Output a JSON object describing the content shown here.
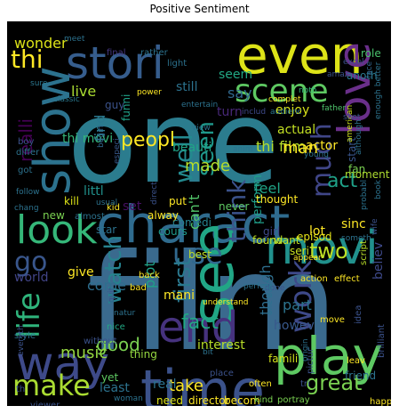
{
  "figure": {
    "title": "Positive Sentiment"
  },
  "wordcloud": {
    "background": "#000000",
    "palette": "viridis",
    "words": [
      {
        "text": "film",
        "color": "#3a6a8e"
      },
      {
        "text": "one",
        "color": "#2b7c8e"
      },
      {
        "text": "charact",
        "color": "#2f6b8e"
      },
      {
        "text": "time",
        "color": "#3b528b"
      },
      {
        "text": "play",
        "color": "#5ec962"
      },
      {
        "text": "movi",
        "color": "#21918c"
      },
      {
        "text": "see",
        "color": "#21a685"
      },
      {
        "text": "stori",
        "color": "#365d8d"
      },
      {
        "text": "even",
        "color": "#dde318"
      },
      {
        "text": "show",
        "color": "#2c728e"
      },
      {
        "text": "love",
        "color": "#6a2f8a"
      },
      {
        "text": "way",
        "color": "#3e4a89"
      },
      {
        "text": "end",
        "color": "#46327e"
      },
      {
        "text": "look",
        "color": "#35b779"
      },
      {
        "text": "make",
        "color": "#aadc32"
      },
      {
        "text": "scene",
        "color": "#5ec962"
      },
      {
        "text": "life",
        "color": "#2fb47c"
      },
      {
        "text": "work",
        "color": "#3e4989"
      },
      {
        "text": "think",
        "color": "#3b528b"
      },
      {
        "text": "much",
        "color": "#404688"
      },
      {
        "text": "go",
        "color": "#39568c"
      },
      {
        "text": "well",
        "color": "#23898e"
      },
      {
        "text": "use",
        "color": "#31688e"
      },
      {
        "text": "watch",
        "color": "#26828e"
      },
      {
        "text": "peopl",
        "color": "#fde725"
      },
      {
        "text": "thi",
        "color": "#fde725"
      },
      {
        "text": "first",
        "color": "#2a788e"
      },
      {
        "text": "seen",
        "color": "#1f988b"
      },
      {
        "text": "great",
        "color": "#7ad151"
      },
      {
        "text": "two",
        "color": "#bddf26"
      },
      {
        "text": "good",
        "color": "#7ad151"
      },
      {
        "text": "fact",
        "color": "#22a884"
      },
      {
        "text": "made",
        "color": "#b5de2b"
      },
      {
        "text": "realli",
        "color": "#440154"
      },
      {
        "text": "wonder",
        "color": "#dde318"
      },
      {
        "text": "music",
        "color": "#95d840"
      },
      {
        "text": "take",
        "color": "#fde725"
      },
      {
        "text": "act",
        "color": "#1fa188"
      },
      {
        "text": "thi film",
        "color": "#b5de2b"
      },
      {
        "text": "thi movi",
        "color": "#35b779"
      },
      {
        "text": "live",
        "color": "#aadc32"
      },
      {
        "text": "littl",
        "color": "#21918c"
      },
      {
        "text": "find",
        "color": "#2a788e"
      },
      {
        "text": "feel",
        "color": "#20a386"
      },
      {
        "text": "perform",
        "color": "#1f9e89"
      },
      {
        "text": "man",
        "color": "#fde725"
      },
      {
        "text": "actual",
        "color": "#c2df23"
      },
      {
        "text": "still",
        "color": "#2c728e"
      },
      {
        "text": "seem",
        "color": "#22a884"
      },
      {
        "text": "turn",
        "color": "#482878"
      },
      {
        "text": "say",
        "color": "#31688e"
      },
      {
        "text": "beauti",
        "color": "#20a486"
      },
      {
        "text": "plot",
        "color": "#1fa188"
      },
      {
        "text": "mani",
        "color": "#fde725"
      },
      {
        "text": "give",
        "color": "#fde725"
      },
      {
        "text": "come",
        "color": "#2e6e8e"
      },
      {
        "text": "though",
        "color": "#2e6e8e"
      },
      {
        "text": "part",
        "color": "#2c738e"
      },
      {
        "text": "howev",
        "color": "#38588c"
      },
      {
        "text": "interest",
        "color": "#b8de29"
      },
      {
        "text": "enjoy",
        "color": "#d8e219"
      },
      {
        "text": "actor",
        "color": "#fde725"
      },
      {
        "text": "world",
        "color": "#414487"
      },
      {
        "text": "can't",
        "color": "#52c569"
      },
      {
        "text": "believ",
        "color": "#3e4989"
      },
      {
        "text": "best",
        "color": "#c0df25"
      },
      {
        "text": "famili",
        "color": "#d2e21b"
      },
      {
        "text": "lot",
        "color": "#fde725"
      },
      {
        "text": "found",
        "color": "#c2df23"
      },
      {
        "text": "want",
        "color": "#c2df23"
      },
      {
        "text": "anoth",
        "color": "#2a788e"
      },
      {
        "text": "fan",
        "color": "#7ad151"
      },
      {
        "text": "start",
        "color": "#39558c"
      },
      {
        "text": "moment",
        "color": "#addc30"
      },
      {
        "text": "guy",
        "color": "#3b528b"
      },
      {
        "text": "funni",
        "color": "#1fa187"
      },
      {
        "text": "final",
        "color": "#453781"
      },
      {
        "text": "rather",
        "color": "#2c728e"
      },
      {
        "text": "light",
        "color": "#2c728e"
      },
      {
        "text": "role",
        "color": "#4ac16d"
      },
      {
        "text": "face",
        "color": "#32658e"
      },
      {
        "text": "includ",
        "color": "#3e4989"
      },
      {
        "text": "audienc",
        "color": "#2a768e"
      },
      {
        "text": "american",
        "color": "#cde11d"
      },
      {
        "text": "noth",
        "color": "#35b779"
      },
      {
        "text": "father",
        "color": "#4ec36b"
      },
      {
        "text": "entertain",
        "color": "#2c728e"
      },
      {
        "text": "power",
        "color": "#fde725"
      },
      {
        "text": "classic",
        "color": "#2a788e"
      },
      {
        "text": "sure",
        "color": "#2a768e"
      },
      {
        "text": "begin",
        "color": "#31688e"
      },
      {
        "text": "especi",
        "color": "#38598c"
      },
      {
        "text": "young",
        "color": "#2c738e"
      },
      {
        "text": "kill",
        "color": "#dde318"
      },
      {
        "text": "kid",
        "color": "#fde725"
      },
      {
        "text": "set",
        "color": "#471063"
      },
      {
        "text": "put",
        "color": "#fde725"
      },
      {
        "text": "never",
        "color": "#5ec962"
      },
      {
        "text": "thought",
        "color": "#fde725"
      },
      {
        "text": "girl",
        "color": "#3f4889"
      },
      {
        "text": "episod",
        "color": "#e5e419"
      },
      {
        "text": "seri",
        "color": "#c8e020"
      },
      {
        "text": "sinc",
        "color": "#fde725"
      },
      {
        "text": "star",
        "color": "#2c728e"
      },
      {
        "text": "cours",
        "color": "#1f9a8a"
      },
      {
        "text": "alway",
        "color": "#fde725"
      },
      {
        "text": "comedi",
        "color": "#26828e"
      },
      {
        "text": "new",
        "color": "#7ad151"
      },
      {
        "text": "almost",
        "color": "#2c728e"
      },
      {
        "text": "script",
        "color": "#b8de29"
      },
      {
        "text": "wife",
        "color": "#3b528b"
      },
      {
        "text": "back",
        "color": "#fde725"
      },
      {
        "text": "bad",
        "color": "#fde725"
      },
      {
        "text": "nice",
        "color": "#22a884"
      },
      {
        "text": "without",
        "color": "#3b528b"
      },
      {
        "text": "thing",
        "color": "#95d840"
      },
      {
        "text": "real",
        "color": "#2c728e"
      },
      {
        "text": "yet",
        "color": "#5ec962"
      },
      {
        "text": "least",
        "color": "#2c728e"
      },
      {
        "text": "need",
        "color": "#dde318"
      },
      {
        "text": "director",
        "color": "#fde725"
      },
      {
        "text": "becom",
        "color": "#fde725"
      },
      {
        "text": "kind",
        "color": "#7ad151"
      },
      {
        "text": "portray",
        "color": "#7ad151"
      },
      {
        "text": "often",
        "color": "#fde725"
      },
      {
        "text": "tri",
        "color": "#3b528b"
      },
      {
        "text": "friend",
        "color": "#2c728e"
      },
      {
        "text": "leav",
        "color": "#fde725"
      },
      {
        "text": "pictur",
        "color": "#3b528b"
      },
      {
        "text": "place",
        "color": "#3b528b"
      },
      {
        "text": "understand",
        "color": "#fde725"
      },
      {
        "text": "move",
        "color": "#fde725"
      },
      {
        "text": "idea",
        "color": "#3b528b"
      },
      {
        "text": "happen",
        "color": "#fde725"
      },
      {
        "text": "woman",
        "color": "#2c728e"
      },
      {
        "text": "viewer",
        "color": "#3b528b"
      },
      {
        "text": "brilliant",
        "color": "#3b528b"
      },
      {
        "text": "style",
        "color": "#2c728e"
      },
      {
        "text": "differ",
        "color": "#2c728e"
      },
      {
        "text": "chang",
        "color": "#2c728e"
      },
      {
        "text": "follow",
        "color": "#2c728e"
      },
      {
        "text": "got",
        "color": "#2c728e"
      },
      {
        "text": "boy",
        "color": "#3b528b"
      },
      {
        "text": "appear",
        "color": "#fde725"
      },
      {
        "text": "action",
        "color": "#fde725"
      },
      {
        "text": "effect",
        "color": "#fde725"
      },
      {
        "text": "done",
        "color": "#3b528b"
      },
      {
        "text": "one best",
        "color": "#2c728e"
      },
      {
        "text": "perfect",
        "color": "#2c728e"
      },
      {
        "text": "th",
        "color": "#3b528b"
      },
      {
        "text": "meet",
        "color": "#2c728e"
      },
      {
        "text": "amaz",
        "color": "#3b528b"
      },
      {
        "text": "excel",
        "color": "#3b528b"
      },
      {
        "text": "shot",
        "color": "#3b528b"
      },
      {
        "text": "complet",
        "color": "#fde725"
      },
      {
        "text": "view",
        "color": "#2c728e"
      },
      {
        "text": "book",
        "color": "#2c728e"
      },
      {
        "text": "probabl",
        "color": "#2c728e"
      },
      {
        "text": "someth",
        "color": "#2c728e"
      },
      {
        "text": "bit",
        "color": "#2c728e"
      },
      {
        "text": "origin",
        "color": "#2c728e"
      },
      {
        "text": "natur",
        "color": "#2c728e"
      },
      {
        "text": "everyth",
        "color": "#3b528b"
      },
      {
        "text": "quit",
        "color": "#3b528b"
      },
      {
        "text": "direct",
        "color": "#3b528b"
      },
      {
        "text": "enough better",
        "color": "#2c728e"
      },
      {
        "text": "although",
        "color": "#2c728e"
      },
      {
        "text": "usual",
        "color": "#2c728e"
      },
      {
        "text": "anim",
        "color": "#2c728e"
      }
    ]
  }
}
